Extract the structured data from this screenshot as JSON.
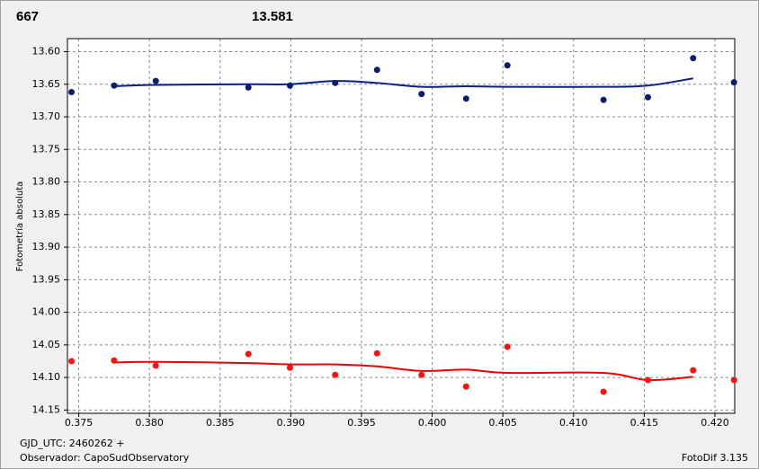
{
  "chart_data": {
    "type": "scatter",
    "header_left": "667",
    "header_left_color": "#ff0000",
    "header_right": "13.581",
    "header_right_color": "#0a1e8c",
    "y_label": "Fotometría absoluta",
    "footer_left_1": "GJD_UTC: 2460262 +",
    "footer_left_2": "Observador: CapoSudObservatory",
    "footer_right": "FotoDif 3.135",
    "xlim": [
      0.3742,
      0.4214
    ],
    "ylim": [
      13.58,
      14.155
    ],
    "y_inverted": true,
    "grid": true,
    "xticks": [
      0.375,
      {
        "value": 0.38,
        "label": "0.380"
      },
      0.385,
      {
        "value": 0.39,
        "label": "0.390"
      },
      0.395,
      {
        "value": 0.4,
        "label": "0.400"
      },
      0.405,
      {
        "value": 0.41,
        "label": "0.410"
      },
      0.415,
      {
        "value": 0.42,
        "label": "0.420"
      }
    ],
    "yticks": [
      {
        "value": 13.6,
        "label": "13.60"
      },
      13.65,
      {
        "value": 13.7,
        "label": "13.70"
      },
      13.75,
      {
        "value": 13.8,
        "label": "13.80"
      },
      13.85,
      {
        "value": 13.9,
        "label": "13.90"
      },
      13.95,
      {
        "value": 14.0,
        "label": "14.00"
      },
      14.05,
      {
        "value": 14.1,
        "label": "14.10"
      },
      14.15
    ],
    "series": [
      {
        "color": "#0a1e6e",
        "x": [
          0.37449,
          0.3775,
          0.38045,
          0.387,
          0.38994,
          0.39314,
          0.3961,
          0.39925,
          0.4024,
          0.40532,
          0.41212,
          0.41526,
          0.41846,
          0.42135
        ],
        "values": [
          13.662,
          13.652,
          13.645,
          13.655,
          13.652,
          13.648,
          13.628,
          13.665,
          13.672,
          13.621,
          13.674,
          13.67,
          13.61,
          13.647
        ],
        "fit_color": "#0a1e8c",
        "fit_x": [
          0.3775,
          0.38045,
          0.387,
          0.38994,
          0.39314,
          0.3961,
          0.39925,
          0.4024,
          0.40532,
          0.41212,
          0.41526,
          0.41846
        ],
        "fit_values": [
          13.653,
          13.651,
          13.65,
          13.65,
          13.645,
          13.648,
          13.654,
          13.653,
          13.654,
          13.654,
          13.652,
          13.641
        ]
      },
      {
        "color": "#ff1010",
        "x": [
          0.37449,
          0.3775,
          0.38045,
          0.387,
          0.38994,
          0.39314,
          0.3961,
          0.39925,
          0.4024,
          0.40532,
          0.41212,
          0.41526,
          0.41846,
          0.42135
        ],
        "values": [
          14.075,
          14.074,
          14.082,
          14.064,
          14.085,
          14.096,
          14.063,
          14.096,
          14.114,
          14.053,
          14.122,
          14.104,
          14.089,
          14.104
        ],
        "fit_color": "#ee0000",
        "fit_x": [
          0.3775,
          0.38045,
          0.387,
          0.38994,
          0.39314,
          0.3961,
          0.39925,
          0.4024,
          0.40532,
          0.41212,
          0.41526,
          0.41846
        ],
        "fit_values": [
          14.077,
          14.076,
          14.078,
          14.08,
          14.08,
          14.083,
          14.09,
          14.088,
          14.093,
          14.093,
          14.104,
          14.099
        ]
      }
    ]
  }
}
